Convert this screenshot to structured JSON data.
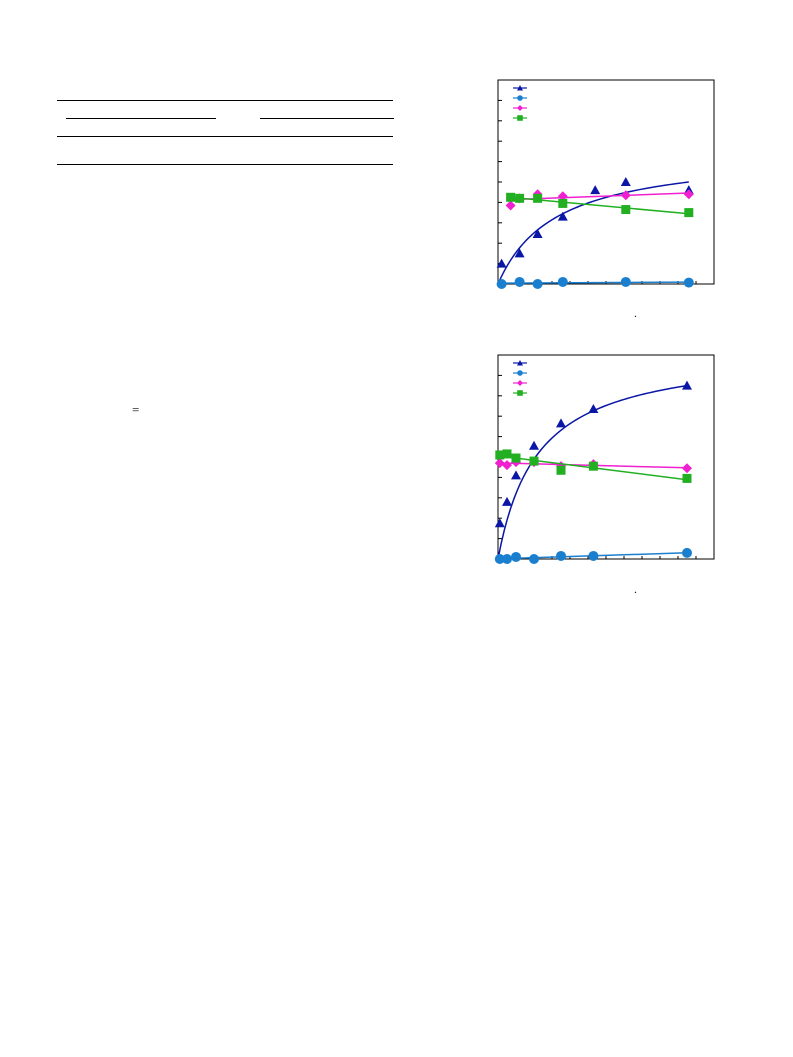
{
  "equation": {
    "sign": "="
  },
  "figure": {
    "x_caption_mark": "."
  },
  "chart_data": [
    {
      "type": "line",
      "title": "",
      "xlabel": "",
      "ylabel": "",
      "xlim": [
        0,
        12
      ],
      "ylim": [
        0,
        1
      ],
      "grid": false,
      "legend": "top-left",
      "series": [
        {
          "name": "",
          "color": "#0a16a6",
          "marker": "triangle",
          "x": [
            0.2,
            1.2,
            2.2,
            3.6,
            5.4,
            7.1,
            10.6
          ],
          "y": [
            0.1,
            0.15,
            0.245,
            0.33,
            0.46,
            0.5,
            0.46
          ]
        },
        {
          "name": "",
          "color": "#1a7fcf",
          "marker": "circle",
          "x": [
            0.2,
            1.2,
            2.2,
            3.6,
            7.1,
            10.6
          ],
          "y": [
            0.0,
            0.01,
            0.0,
            0.01,
            0.01,
            0.007
          ]
        },
        {
          "name": "",
          "color": "#f020d0",
          "marker": "diamond",
          "x": [
            0.7,
            1.2,
            2.2,
            3.6,
            7.1,
            10.6
          ],
          "y": [
            0.385,
            0.42,
            0.44,
            0.43,
            0.435,
            0.44
          ]
        },
        {
          "name": "",
          "color": "#22b022",
          "marker": "square",
          "x": [
            0.7,
            1.2,
            2.2,
            3.6,
            7.1,
            10.6
          ],
          "y": [
            0.425,
            0.42,
            0.42,
            0.395,
            0.365,
            0.35
          ]
        }
      ]
    },
    {
      "type": "line",
      "title": "",
      "xlabel": "",
      "ylabel": "",
      "xlim": [
        0,
        12
      ],
      "ylim": [
        0,
        1
      ],
      "grid": false,
      "legend": "top-left",
      "series": [
        {
          "name": "",
          "color": "#0a16a6",
          "marker": "triangle",
          "x": [
            0.1,
            0.5,
            1.0,
            2.0,
            3.5,
            5.3,
            10.5
          ],
          "y": [
            0.175,
            0.28,
            0.41,
            0.555,
            0.665,
            0.735,
            0.85
          ]
        },
        {
          "name": "",
          "color": "#1a7fcf",
          "marker": "circle",
          "x": [
            0.1,
            0.5,
            1.0,
            2.0,
            3.5,
            5.3,
            10.5
          ],
          "y": [
            0.0,
            0.0,
            0.01,
            0.0,
            0.015,
            0.015,
            0.03
          ]
        },
        {
          "name": "",
          "color": "#f020d0",
          "marker": "diamond",
          "x": [
            0.1,
            0.5,
            1.0,
            2.0,
            3.5,
            5.3,
            10.5
          ],
          "y": [
            0.47,
            0.46,
            0.475,
            0.475,
            0.455,
            0.465,
            0.445
          ]
        },
        {
          "name": "",
          "color": "#22b022",
          "marker": "square",
          "x": [
            0.1,
            0.5,
            1.0,
            2.0,
            3.5,
            5.3,
            10.5
          ],
          "y": [
            0.51,
            0.515,
            0.495,
            0.48,
            0.435,
            0.455,
            0.395
          ]
        }
      ]
    }
  ]
}
